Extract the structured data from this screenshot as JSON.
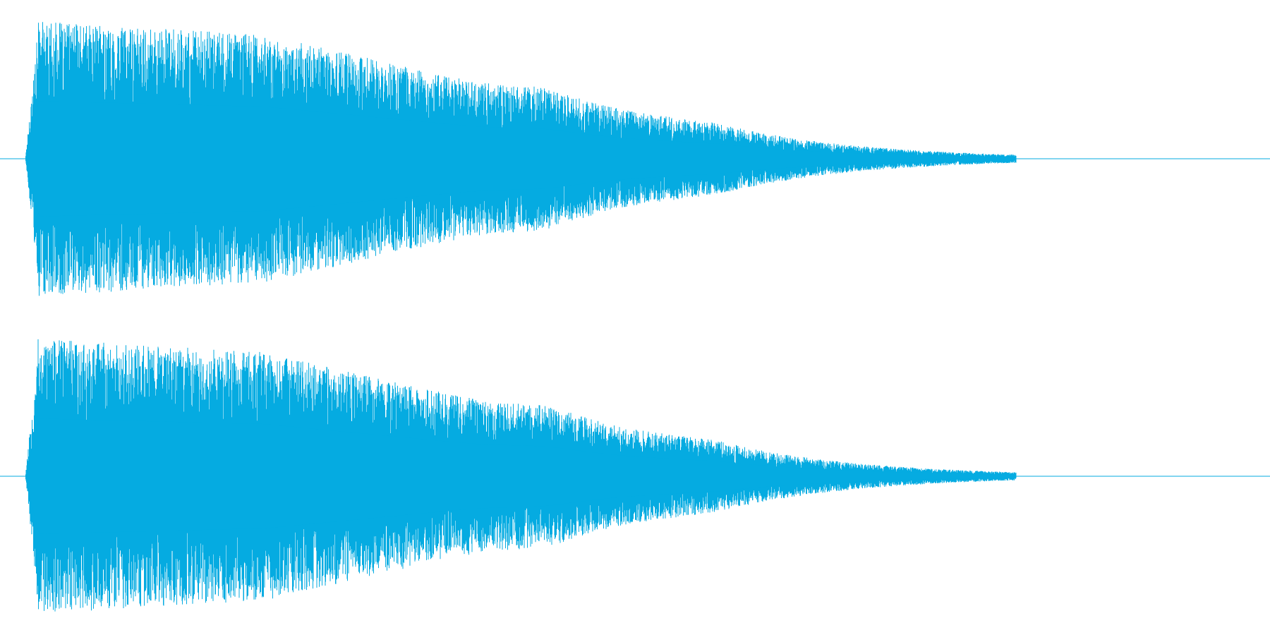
{
  "waveform": {
    "color": "#05ABE1",
    "background": "#FFFFFF",
    "channel_count": 2,
    "channels": [
      {
        "channel": 1,
        "seed": 17
      },
      {
        "channel": 2,
        "seed": 53
      }
    ]
  }
}
